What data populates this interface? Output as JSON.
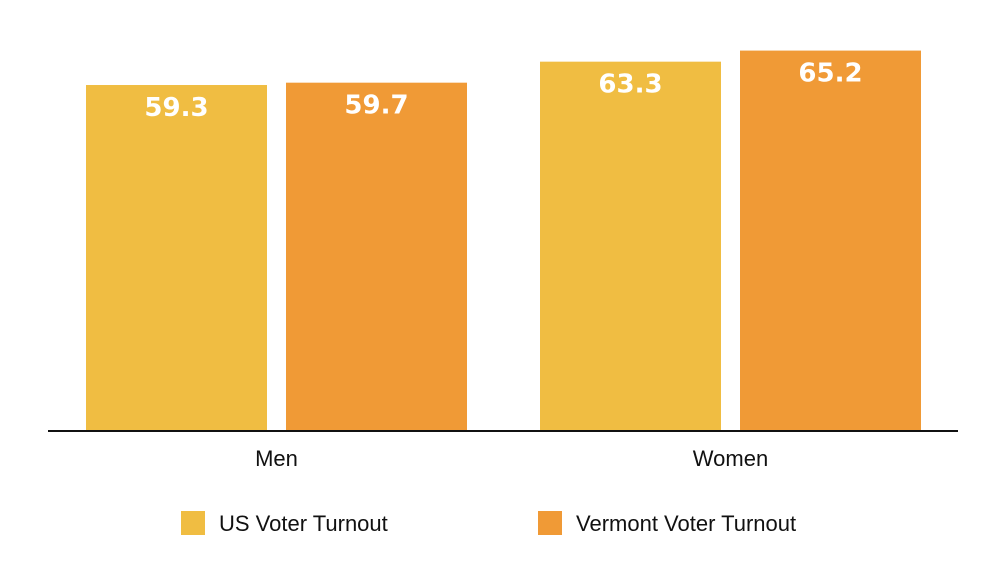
{
  "chart_data": {
    "type": "bar",
    "categories": [
      "Men",
      "Women"
    ],
    "series": [
      {
        "name": "US Voter Turnout",
        "values": [
          59.3,
          63.3
        ],
        "color": "#F0BD42"
      },
      {
        "name": "Vermont Voter Turnout",
        "values": [
          59.7,
          65.2
        ],
        "color": "#F09A36"
      }
    ],
    "value_labels": [
      [
        "59.3",
        "63.3"
      ],
      [
        "59.7",
        "65.2"
      ]
    ],
    "ylim": [
      0,
      66.5
    ],
    "grid": false,
    "legend": "bottom-center",
    "title": "",
    "xlabel": "",
    "ylabel": ""
  }
}
